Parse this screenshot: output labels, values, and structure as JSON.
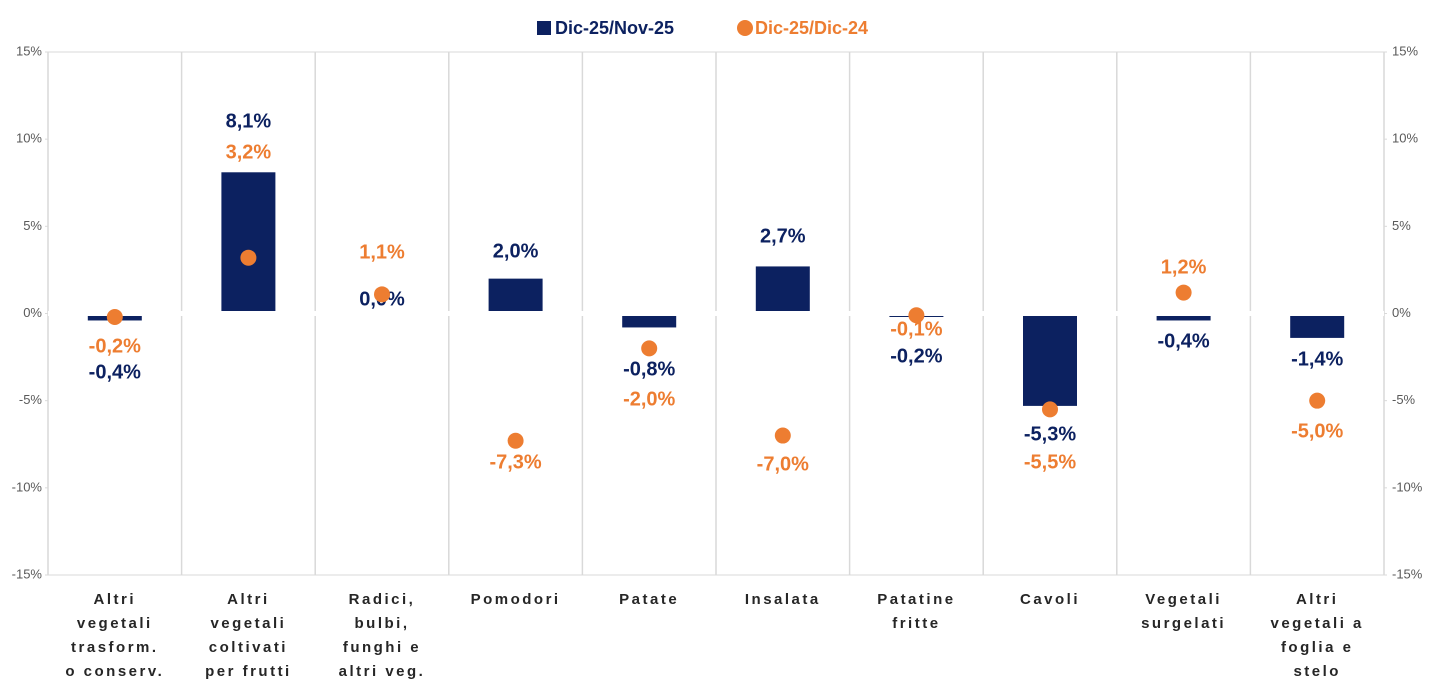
{
  "chart_data": {
    "type": "bar",
    "categories": [
      [
        "Altri",
        "vegetali",
        "trasform.",
        "o conserv."
      ],
      [
        "Altri",
        "vegetali",
        "coltivati",
        "per frutti"
      ],
      [
        "Radici,",
        "bulbi,",
        "funghi e",
        "altri veg."
      ],
      [
        "Pomodori"
      ],
      [
        "Patate"
      ],
      [
        "Insalata"
      ],
      [
        "Patatine",
        "fritte"
      ],
      [
        "Cavoli"
      ],
      [
        "Vegetali",
        "surgelati"
      ],
      [
        "Altri",
        "vegetali a",
        "foglia e",
        "stelo"
      ]
    ],
    "series": [
      {
        "name": "Dic-25/Nov-25",
        "type": "bar",
        "color": "#0c2160",
        "values": [
          -0.4,
          8.1,
          0.0,
          2.0,
          -0.8,
          2.7,
          -0.2,
          -5.3,
          -0.4,
          -1.4
        ],
        "value_labels": [
          "-0,4%",
          "8,1%",
          "0,0%",
          "2,0%",
          "-0,8%",
          "2,7%",
          "-0,2%",
          "-5,3%",
          "-0,4%",
          "-1,4%"
        ]
      },
      {
        "name": "Dic-25/Dic-24",
        "type": "scatter",
        "axis": "y2",
        "color": "#ed7d31",
        "values": [
          -0.2,
          3.2,
          1.1,
          -7.3,
          -2.0,
          -7.0,
          -0.1,
          -5.5,
          1.2,
          -5.0
        ],
        "value_labels": [
          "-0,2%",
          "3,2%",
          "1,1%",
          "-7,3%",
          "-2,0%",
          "-7,0%",
          "-0,1%",
          "-5,5%",
          "1,2%",
          "-5,0%"
        ]
      }
    ],
    "ylim": [
      -15,
      15
    ],
    "yticks": [
      {
        "value": 15,
        "label": "15%"
      },
      {
        "value": 10,
        "label": "10%"
      },
      {
        "value": 5,
        "label": "5%"
      },
      {
        "value": 0,
        "label": "0%"
      },
      {
        "value": -5,
        "label": "-5%"
      },
      {
        "value": -10,
        "label": "-10%"
      },
      {
        "value": -15,
        "label": "-15%"
      }
    ],
    "y2lim": [
      -15,
      15
    ],
    "y2ticks": [
      {
        "value": 15,
        "label": "15%"
      },
      {
        "value": 10,
        "label": "10%"
      },
      {
        "value": 5,
        "label": "5%"
      },
      {
        "value": 0,
        "label": "0%"
      },
      {
        "value": -5,
        "label": "-5%"
      },
      {
        "value": -10,
        "label": "-10%"
      },
      {
        "value": -15,
        "label": "-15%"
      }
    ],
    "legend": "top"
  }
}
